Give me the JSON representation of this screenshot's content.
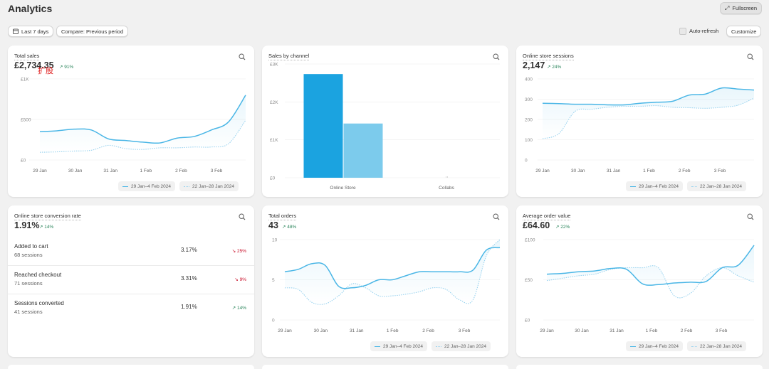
{
  "header": {
    "title": "Analytics",
    "fullscreen_label": "Fullscreen"
  },
  "toolbar": {
    "date_range_label": "Last 7 days",
    "compare_label": "Compare: Previous period",
    "autorefresh_label": "Auto-refresh",
    "customize_label": "Customize"
  },
  "colors": {
    "current": "#4ab6e6",
    "previous": "#9ad3ef",
    "positive": "#29845a",
    "negative": "#c70a24",
    "bar_dark": "#1ba3e0",
    "bar_light": "#7ccbec"
  },
  "legend": {
    "current": "29 Jan–4 Feb 2024",
    "previous": "22 Jan–28 Jan 2024"
  },
  "x_dates": [
    "29 Jan",
    "30 Jan",
    "31 Jan",
    "1 Feb",
    "2 Feb",
    "3 Feb"
  ],
  "total_sales": {
    "title": "Total sales",
    "value": "£2,734.35",
    "change": "91%",
    "overlay_text": "扩股",
    "chart_data": {
      "type": "line",
      "y_ticks": [
        "£1K",
        "£500",
        "£0"
      ],
      "ylim": [
        0,
        1000
      ],
      "series": [
        {
          "values": [
            350,
            360,
            380,
            370,
            260,
            240,
            220,
            210,
            270,
            290,
            370,
            470,
            800
          ]
        },
        {
          "values": [
            95,
            100,
            110,
            120,
            180,
            140,
            130,
            150,
            150,
            160,
            160,
            200,
            490
          ]
        }
      ]
    }
  },
  "sales_by_channel": {
    "title": "Sales by channel",
    "chart_data": {
      "type": "bar",
      "categories": [
        "Online Store",
        "Collabs"
      ],
      "y_ticks": [
        "£3K",
        "£2K",
        "£1K",
        "£0"
      ],
      "ylim": [
        0,
        3000
      ],
      "series": [
        {
          "values": [
            2734.35,
            0
          ]
        },
        {
          "values": [
            1430,
            0
          ]
        }
      ]
    }
  },
  "sessions": {
    "title": "Online store sessions",
    "value": "2,147",
    "change": "24%",
    "chart_data": {
      "type": "line",
      "y_ticks": [
        "400",
        "300",
        "200",
        "100",
        "0"
      ],
      "ylim": [
        0,
        400
      ],
      "series": [
        {
          "values": [
            280,
            278,
            275,
            275,
            272,
            272,
            280,
            285,
            290,
            320,
            325,
            355,
            350,
            345
          ]
        },
        {
          "values": [
            105,
            130,
            240,
            250,
            260,
            265,
            265,
            268,
            260,
            258,
            255,
            260,
            270,
            305
          ]
        }
      ]
    }
  },
  "conversion": {
    "title": "Online store conversion rate",
    "value": "1.91%",
    "change": "14%",
    "rows": [
      {
        "label": "Added to cart",
        "sessions": "68 sessions",
        "pct": "3.17%",
        "change": "25%",
        "dir": "down"
      },
      {
        "label": "Reached checkout",
        "sessions": "71 sessions",
        "pct": "3.31%",
        "change": "9%",
        "dir": "down"
      },
      {
        "label": "Sessions converted",
        "sessions": "41 sessions",
        "pct": "1.91%",
        "change": "14%",
        "dir": "up"
      }
    ]
  },
  "total_orders": {
    "title": "Total orders",
    "value": "43",
    "change": "48%",
    "chart_data": {
      "type": "line",
      "y_ticks": [
        "10",
        "5",
        "0"
      ],
      "ylim": [
        0,
        10
      ],
      "series": [
        {
          "values": [
            6,
            6.3,
            7,
            6.8,
            4.2,
            4,
            4.3,
            5,
            5,
            5.5,
            6,
            6,
            6,
            6,
            6.2,
            8.7,
            9
          ]
        },
        {
          "values": [
            4,
            3.8,
            2.2,
            2,
            3,
            4.5,
            4,
            3,
            3,
            3.2,
            3.5,
            4,
            3.8,
            2.5,
            2.5,
            8,
            10
          ]
        }
      ]
    }
  },
  "aov": {
    "title": "Average order value",
    "value": "£64.60",
    "change": "22%",
    "chart_data": {
      "type": "line",
      "y_ticks": [
        "£100",
        "£50",
        "£0"
      ],
      "ylim": [
        0,
        100
      ],
      "series": [
        {
          "values": [
            57,
            58,
            60,
            61,
            64,
            63,
            45,
            44,
            46,
            47,
            48,
            65,
            68,
            93
          ]
        },
        {
          "values": [
            49,
            52,
            55,
            57,
            63,
            65,
            65,
            65,
            30,
            33,
            55,
            65,
            55,
            47
          ]
        }
      ]
    }
  }
}
